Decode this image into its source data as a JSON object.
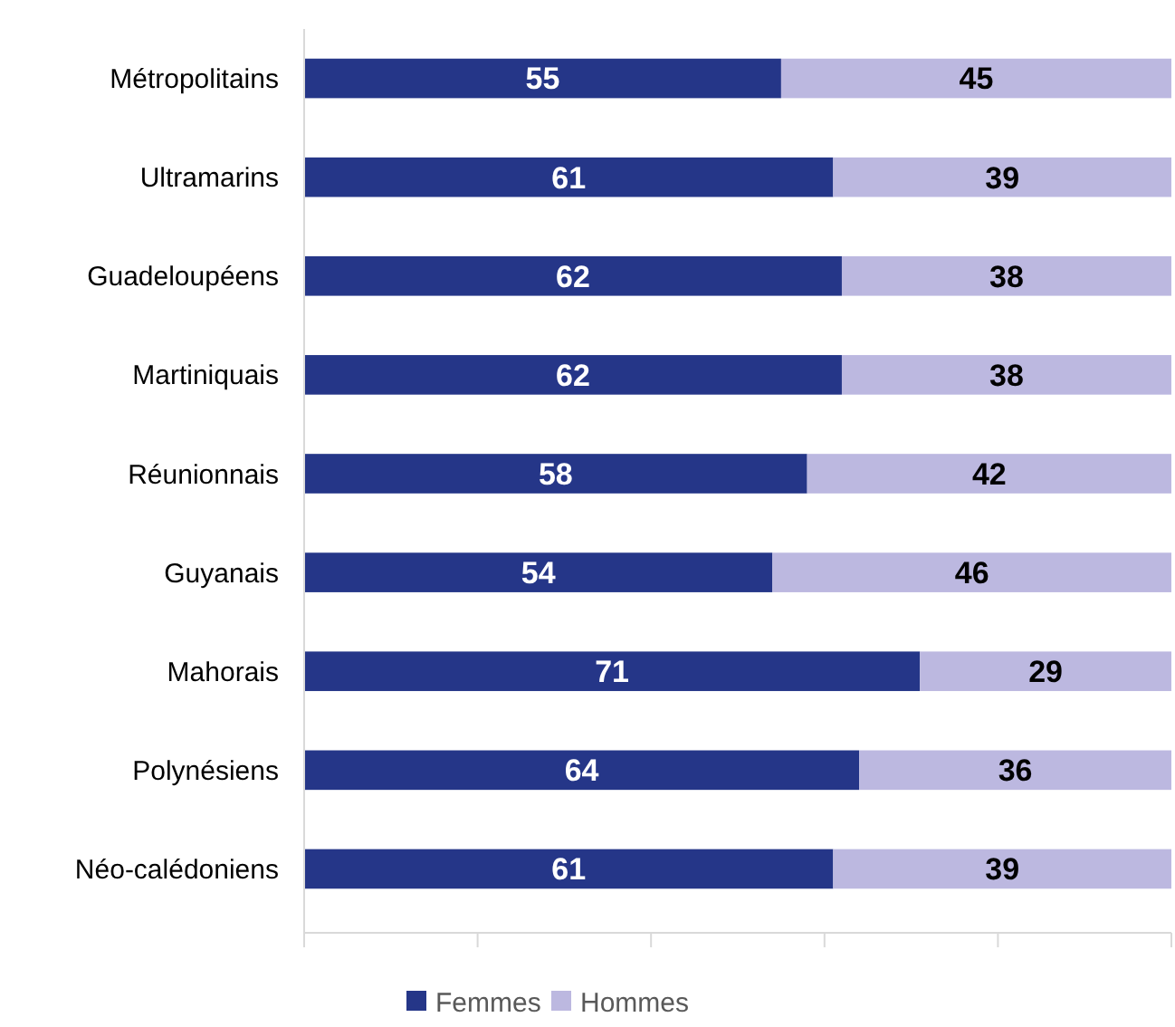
{
  "chart_data": {
    "type": "bar",
    "orientation": "horizontal",
    "stacked": true,
    "categories": [
      "Métropolitains",
      "Ultramarins",
      "Guadeloupéens",
      "Martiniquais",
      "Réunionnais",
      "Guyanais",
      "Mahorais",
      "Polynésiens",
      "Néo-calédoniens"
    ],
    "series": [
      {
        "name": "Femmes",
        "color": "#253688",
        "values": [
          55,
          61,
          62,
          62,
          58,
          54,
          71,
          64,
          61
        ]
      },
      {
        "name": "Hommes",
        "color": "#bcb8e0",
        "values": [
          45,
          39,
          38,
          38,
          42,
          46,
          29,
          36,
          39
        ]
      }
    ],
    "xlim": [
      0,
      100
    ],
    "xticks": [
      {
        "value": 0,
        "label": null
      },
      {
        "value": 20,
        "label": null
      },
      {
        "value": 40,
        "label": null
      },
      {
        "value": 60,
        "label": null
      },
      {
        "value": 80,
        "label": null
      },
      {
        "value": 100,
        "label": null
      }
    ],
    "tick_labels": "y",
    "data_labels": true,
    "legend": "bottom"
  }
}
